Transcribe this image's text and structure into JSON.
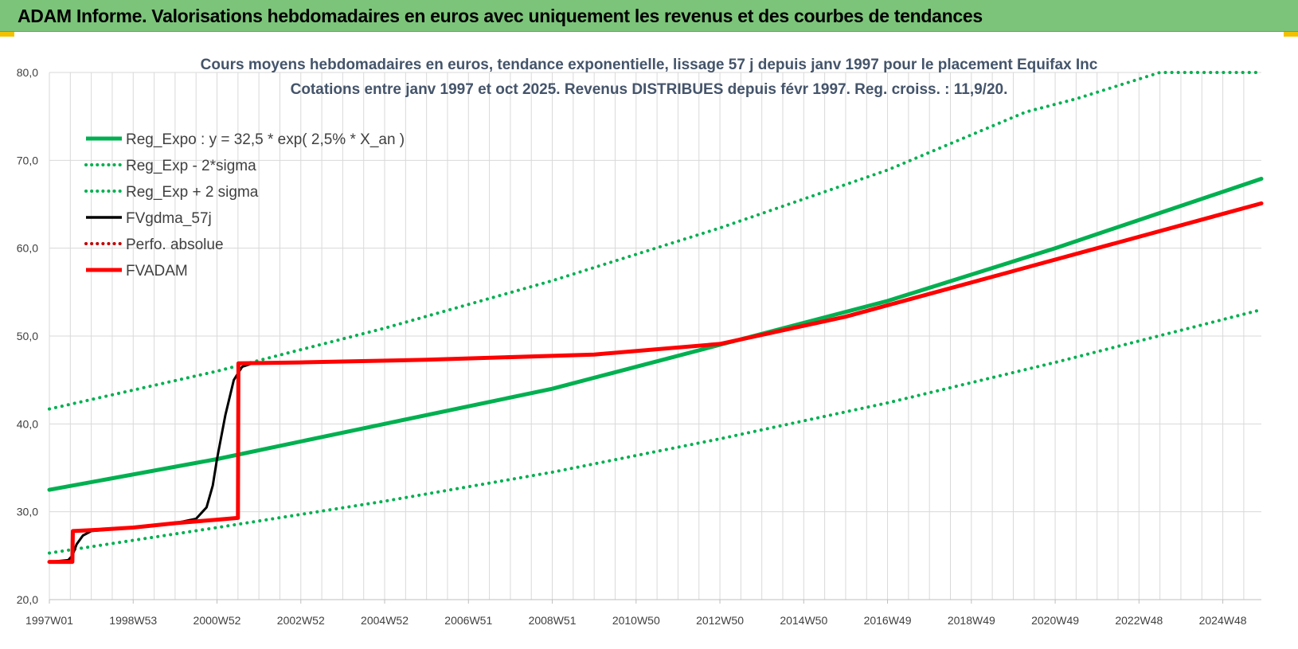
{
  "header": {
    "title": "ADAM Informe. Valorisations hebdomadaires en euros avec uniquement les revenus et des courbes de tendances"
  },
  "chart_data": {
    "type": "line",
    "title_line1": "Cours moyens hebdomadaires en euros, tendance exponentielle, lissage 57 j depuis janv 1997 pour le placement Equifax Inc",
    "title_line2": "Cotations entre janv 1997 et oct 2025. Revenus DISTRIBUES depuis févr 1997. Reg. croiss. : 11,9/20.",
    "x_tick_labels": [
      "1997W01",
      "1998W53",
      "2000W52",
      "2002W52",
      "2004W52",
      "2006W51",
      "2008W51",
      "2010W50",
      "2012W50",
      "2014W50",
      "2016W49",
      "2018W49",
      "2020W49",
      "2022W48",
      "2024W48"
    ],
    "x_tick_years": [
      1997.0,
      1999.0,
      2001.0,
      2003.0,
      2005.0,
      2007.0,
      2009.0,
      2011.0,
      2013.0,
      2015.0,
      2017.0,
      2019.0,
      2021.0,
      2023.0,
      2025.0
    ],
    "xlim": [
      1997.0,
      2025.92
    ],
    "ylim": [
      20,
      80
    ],
    "y_ticks": [
      20,
      30,
      40,
      50,
      60,
      70,
      80
    ],
    "y_tick_labels": [
      "20,0",
      "30,0",
      "40,0",
      "50,0",
      "60,0",
      "70,0",
      "80,0"
    ],
    "grid": true,
    "legend_position": "top-left",
    "series": [
      {
        "name": "Reg_Expo : y = 32,5 * exp( 2,5% *  X_an )",
        "style": "solid",
        "color": "#00b050",
        "x": [
          1997.0,
          2001.0,
          2005.0,
          2009.0,
          2013.0,
          2017.0,
          2021.0,
          2025.92
        ],
        "y": [
          32.5,
          36.0,
          40.0,
          44.0,
          49.0,
          54.0,
          60.0,
          67.9
        ]
      },
      {
        "name": "Reg_Exp - 2*sigma",
        "style": "dotted",
        "color": "#00b050",
        "x": [
          1997.0,
          2001.0,
          2005.0,
          2009.0,
          2013.0,
          2017.0,
          2021.0,
          2025.92
        ],
        "y": [
          25.3,
          28.2,
          31.2,
          34.5,
          38.3,
          42.4,
          47.0,
          53.0
        ]
      },
      {
        "name": "Reg_Exp + 2 sigma",
        "style": "dotted",
        "color": "#00b050",
        "x": [
          1997.0,
          2001.0,
          2005.0,
          2009.0,
          2013.0,
          2017.0,
          2020.3,
          2021.5,
          2023.5,
          2025.92
        ],
        "y": [
          41.7,
          46.0,
          50.9,
          56.3,
          62.3,
          68.9,
          75.5,
          77.0,
          80.0,
          80.0
        ]
      },
      {
        "name": "FVgdma_57j",
        "style": "solid",
        "color": "#000000",
        "x": [
          1997.0,
          1997.45,
          1997.55,
          1997.65,
          1997.8,
          1998.0,
          1999.0,
          2000.0,
          2000.5,
          2000.75,
          2000.9,
          2001.0,
          2001.2,
          2001.4,
          2001.6,
          2001.85,
          2003.0,
          2006.0,
          2010.0,
          2013.0,
          2016.0,
          2020.0,
          2025.92
        ],
        "y": [
          24.3,
          24.5,
          25.0,
          26.3,
          27.3,
          27.8,
          28.2,
          28.7,
          29.2,
          30.5,
          33.0,
          36.0,
          41.0,
          45.0,
          46.5,
          46.9,
          47.0,
          47.3,
          47.9,
          49.1,
          52.2,
          57.4,
          65.1
        ]
      },
      {
        "name": "Perfo. absolue",
        "style": "dotted",
        "color": "#c00000",
        "x": [],
        "y": []
      },
      {
        "name": "FVADAM",
        "style": "solid",
        "color": "#ff0000",
        "x": [
          1997.0,
          1997.55,
          1997.56,
          1998.0,
          1999.0,
          2000.0,
          2001.0,
          2001.5,
          2001.51,
          2003.0,
          2006.0,
          2010.0,
          2013.0,
          2016.0,
          2020.0,
          2025.92
        ],
        "y": [
          24.3,
          24.3,
          27.8,
          27.9,
          28.2,
          28.7,
          29.1,
          29.3,
          46.9,
          47.0,
          47.3,
          47.9,
          49.1,
          52.2,
          57.4,
          65.1
        ]
      }
    ]
  },
  "colors": {
    "title_bar": "#7cc47a",
    "title_text": "#44546a",
    "grid": "#d9d9d9"
  }
}
